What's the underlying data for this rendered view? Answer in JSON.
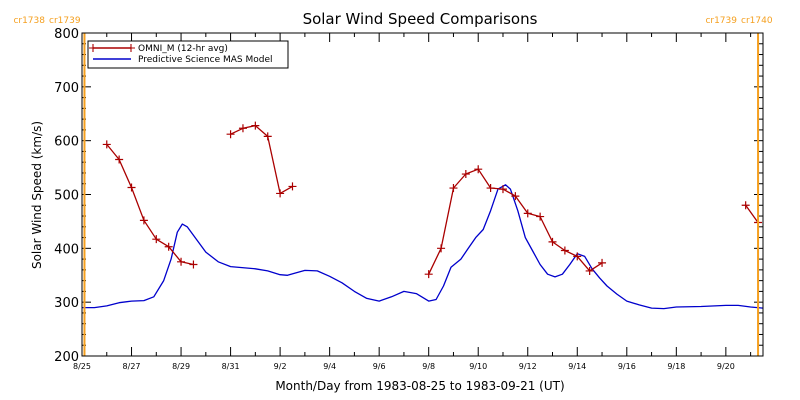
{
  "chart_data": {
    "type": "line",
    "title": "Solar Wind Speed Comparisons",
    "xlabel": "Month/Day from 1983-08-25 to 1983-09-21 (UT)",
    "ylabel": "Solar Wind Speed (km/s)",
    "x_unit": "days",
    "xlim": [
      0,
      27.5
    ],
    "ylim": [
      200,
      800
    ],
    "y_ticks": [
      200,
      300,
      400,
      500,
      600,
      700,
      800
    ],
    "x_ticks": [
      {
        "x": 0,
        "label": "8/25"
      },
      {
        "x": 2,
        "label": "8/27"
      },
      {
        "x": 4,
        "label": "8/29"
      },
      {
        "x": 6,
        "label": "8/31"
      },
      {
        "x": 8,
        "label": "9/2"
      },
      {
        "x": 10,
        "label": "9/4"
      },
      {
        "x": 12,
        "label": "9/6"
      },
      {
        "x": 14,
        "label": "9/8"
      },
      {
        "x": 16,
        "label": "9/10"
      },
      {
        "x": 18,
        "label": "9/12"
      },
      {
        "x": 20,
        "label": "9/14"
      },
      {
        "x": 22,
        "label": "9/16"
      },
      {
        "x": 24,
        "label": "9/18"
      },
      {
        "x": 26,
        "label": "9/20"
      }
    ],
    "rotations": [
      {
        "x": 0.1,
        "left_label": "cr1738",
        "right_label": "cr1739",
        "side": "left"
      },
      {
        "x": 27.3,
        "left_label": "cr1739",
        "right_label": "cr1740",
        "side": "right"
      }
    ],
    "legend": {
      "position": "top-left"
    },
    "series": [
      {
        "name": "OMNI_M (12-hr avg)",
        "color": "#aa0000",
        "marker": "plus",
        "segments": [
          [
            [
              1.0,
              593
            ],
            [
              1.5,
              565
            ],
            [
              2.0,
              513
            ],
            [
              2.5,
              452
            ],
            [
              3.0,
              417
            ],
            [
              3.5,
              403
            ],
            [
              4.0,
              375
            ],
            [
              4.5,
              370
            ]
          ],
          [
            [
              6.0,
              612
            ],
            [
              6.5,
              623
            ],
            [
              7.0,
              628
            ],
            [
              7.5,
              608
            ],
            [
              8.0,
              502
            ],
            [
              8.5,
              515
            ]
          ],
          [
            [
              14.0,
              352
            ],
            [
              14.5,
              400
            ],
            [
              15.0,
              512
            ],
            [
              15.5,
              538
            ],
            [
              16.0,
              547
            ],
            [
              16.5,
              512
            ],
            [
              17.0,
              510
            ],
            [
              17.5,
              497
            ],
            [
              18.0,
              465
            ],
            [
              18.5,
              459
            ],
            [
              19.0,
              412
            ],
            [
              19.5,
              396
            ],
            [
              20.0,
              385
            ],
            [
              20.5,
              358
            ],
            [
              21.0,
              373
            ]
          ],
          [
            [
              26.8,
              480
            ],
            [
              27.3,
              448
            ]
          ]
        ]
      },
      {
        "name": "Predictive Science MAS Model",
        "color": "#0000cc",
        "marker": "none",
        "segments": [
          [
            [
              0.0,
              290
            ],
            [
              0.5,
              290
            ],
            [
              1.0,
              293
            ],
            [
              1.5,
              299
            ],
            [
              2.0,
              302
            ],
            [
              2.5,
              303
            ],
            [
              2.9,
              310
            ],
            [
              3.3,
              340
            ],
            [
              3.6,
              380
            ],
            [
              3.85,
              430
            ],
            [
              4.05,
              445
            ],
            [
              4.25,
              440
            ],
            [
              4.6,
              418
            ],
            [
              5.0,
              393
            ],
            [
              5.5,
              375
            ],
            [
              6.0,
              366
            ],
            [
              7.0,
              362
            ],
            [
              7.5,
              358
            ],
            [
              8.0,
              351
            ],
            [
              8.3,
              350
            ],
            [
              8.6,
              354
            ],
            [
              9.0,
              359
            ],
            [
              9.5,
              358
            ],
            [
              10.0,
              348
            ],
            [
              10.5,
              336
            ],
            [
              11.0,
              320
            ],
            [
              11.5,
              307
            ],
            [
              12.0,
              302
            ],
            [
              12.5,
              310
            ],
            [
              13.0,
              320
            ],
            [
              13.5,
              316
            ],
            [
              14.0,
              302
            ],
            [
              14.3,
              305
            ],
            [
              14.6,
              330
            ],
            [
              14.9,
              365
            ],
            [
              15.3,
              380
            ],
            [
              15.6,
              400
            ],
            [
              15.9,
              420
            ],
            [
              16.2,
              435
            ],
            [
              16.5,
              470
            ],
            [
              16.8,
              510
            ],
            [
              17.1,
              518
            ],
            [
              17.3,
              510
            ],
            [
              17.6,
              470
            ],
            [
              17.9,
              420
            ],
            [
              18.2,
              395
            ],
            [
              18.5,
              370
            ],
            [
              18.8,
              352
            ],
            [
              19.1,
              347
            ],
            [
              19.4,
              352
            ],
            [
              19.7,
              370
            ],
            [
              20.0,
              390
            ],
            [
              20.3,
              385
            ],
            [
              20.6,
              362
            ],
            [
              20.9,
              345
            ],
            [
              21.2,
              330
            ],
            [
              21.6,
              315
            ],
            [
              22.0,
              302
            ],
            [
              22.5,
              295
            ],
            [
              23.0,
              289
            ],
            [
              23.5,
              288
            ],
            [
              24.0,
              291
            ],
            [
              25.0,
              292
            ],
            [
              26.0,
              294
            ],
            [
              26.5,
              294
            ],
            [
              27.0,
              291
            ],
            [
              27.5,
              289
            ]
          ]
        ]
      }
    ]
  }
}
